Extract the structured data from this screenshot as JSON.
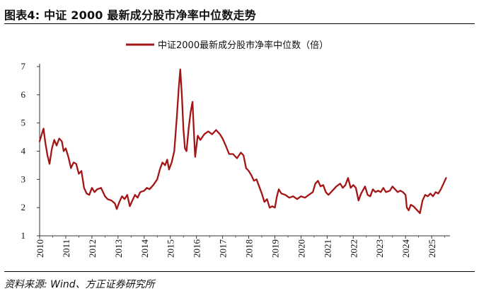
{
  "figure": {
    "title": "图表4: 中证 2000 最新成分股市净率中位数走势",
    "source": "资料来源: Wind、方正证券研究所"
  },
  "chart_data": {
    "type": "line",
    "title": "",
    "xlabel": "",
    "ylabel": "",
    "ylim": [
      1,
      7
    ],
    "yticks": [
      1,
      2,
      3,
      4,
      5,
      6,
      7
    ],
    "xlim": [
      2010,
      2025.7
    ],
    "xticks": [
      "2010",
      "2011",
      "2012",
      "2013",
      "2014",
      "2015",
      "2016",
      "2017",
      "2018",
      "2019",
      "2020",
      "2021",
      "2022",
      "2023",
      "2024",
      "2025"
    ],
    "grid": false,
    "legend_position": "top-center",
    "line_color": "#a31515",
    "series": [
      {
        "name": "中证2000最新成分股市净率中位数（倍）",
        "points": [
          [
            2010.0,
            4.35
          ],
          [
            2010.08,
            4.6
          ],
          [
            2010.15,
            4.8
          ],
          [
            2010.22,
            4.3
          ],
          [
            2010.3,
            3.85
          ],
          [
            2010.38,
            3.55
          ],
          [
            2010.47,
            4.1
          ],
          [
            2010.56,
            4.4
          ],
          [
            2010.65,
            4.2
          ],
          [
            2010.75,
            4.45
          ],
          [
            2010.85,
            4.35
          ],
          [
            2010.92,
            4.0
          ],
          [
            2011.0,
            4.1
          ],
          [
            2011.1,
            3.8
          ],
          [
            2011.2,
            3.4
          ],
          [
            2011.3,
            3.6
          ],
          [
            2011.4,
            3.55
          ],
          [
            2011.5,
            3.2
          ],
          [
            2011.6,
            3.3
          ],
          [
            2011.7,
            2.7
          ],
          [
            2011.8,
            2.5
          ],
          [
            2011.9,
            2.45
          ],
          [
            2012.0,
            2.7
          ],
          [
            2012.1,
            2.55
          ],
          [
            2012.2,
            2.65
          ],
          [
            2012.35,
            2.7
          ],
          [
            2012.5,
            2.4
          ],
          [
            2012.6,
            2.3
          ],
          [
            2012.75,
            2.25
          ],
          [
            2012.88,
            2.15
          ],
          [
            2012.95,
            1.95
          ],
          [
            2013.05,
            2.2
          ],
          [
            2013.15,
            2.4
          ],
          [
            2013.25,
            2.3
          ],
          [
            2013.35,
            2.45
          ],
          [
            2013.45,
            2.05
          ],
          [
            2013.55,
            2.25
          ],
          [
            2013.65,
            2.45
          ],
          [
            2013.75,
            2.35
          ],
          [
            2013.85,
            2.55
          ],
          [
            2014.0,
            2.6
          ],
          [
            2014.1,
            2.7
          ],
          [
            2014.2,
            2.65
          ],
          [
            2014.35,
            2.8
          ],
          [
            2014.5,
            3.0
          ],
          [
            2014.6,
            3.35
          ],
          [
            2014.7,
            3.6
          ],
          [
            2014.8,
            3.5
          ],
          [
            2014.88,
            3.7
          ],
          [
            2014.95,
            3.35
          ],
          [
            2015.05,
            3.6
          ],
          [
            2015.15,
            4.0
          ],
          [
            2015.25,
            5.2
          ],
          [
            2015.32,
            6.2
          ],
          [
            2015.38,
            6.9
          ],
          [
            2015.44,
            6.0
          ],
          [
            2015.5,
            4.8
          ],
          [
            2015.56,
            4.1
          ],
          [
            2015.62,
            4.0
          ],
          [
            2015.7,
            4.8
          ],
          [
            2015.78,
            5.4
          ],
          [
            2015.85,
            5.75
          ],
          [
            2015.9,
            4.7
          ],
          [
            2015.95,
            3.8
          ],
          [
            2016.05,
            4.55
          ],
          [
            2016.15,
            4.4
          ],
          [
            2016.3,
            4.6
          ],
          [
            2016.45,
            4.7
          ],
          [
            2016.6,
            4.6
          ],
          [
            2016.75,
            4.75
          ],
          [
            2016.9,
            4.6
          ],
          [
            2017.0,
            4.45
          ],
          [
            2017.12,
            4.2
          ],
          [
            2017.25,
            3.9
          ],
          [
            2017.4,
            3.9
          ],
          [
            2017.55,
            3.75
          ],
          [
            2017.7,
            3.95
          ],
          [
            2017.8,
            3.85
          ],
          [
            2017.9,
            3.4
          ],
          [
            2018.0,
            3.3
          ],
          [
            2018.1,
            3.15
          ],
          [
            2018.2,
            2.95
          ],
          [
            2018.3,
            3.0
          ],
          [
            2018.4,
            2.75
          ],
          [
            2018.5,
            2.5
          ],
          [
            2018.6,
            2.2
          ],
          [
            2018.7,
            2.3
          ],
          [
            2018.8,
            2.0
          ],
          [
            2018.9,
            2.05
          ],
          [
            2019.0,
            2.0
          ],
          [
            2019.08,
            2.4
          ],
          [
            2019.15,
            2.65
          ],
          [
            2019.25,
            2.5
          ],
          [
            2019.4,
            2.45
          ],
          [
            2019.55,
            2.35
          ],
          [
            2019.7,
            2.4
          ],
          [
            2019.85,
            2.3
          ],
          [
            2020.0,
            2.4
          ],
          [
            2020.15,
            2.35
          ],
          [
            2020.3,
            2.45
          ],
          [
            2020.45,
            2.55
          ],
          [
            2020.55,
            2.85
          ],
          [
            2020.65,
            2.95
          ],
          [
            2020.75,
            2.75
          ],
          [
            2020.85,
            2.8
          ],
          [
            2020.95,
            2.55
          ],
          [
            2021.05,
            2.45
          ],
          [
            2021.2,
            2.6
          ],
          [
            2021.35,
            2.75
          ],
          [
            2021.5,
            2.85
          ],
          [
            2021.6,
            2.7
          ],
          [
            2021.7,
            2.8
          ],
          [
            2021.8,
            3.05
          ],
          [
            2021.9,
            2.7
          ],
          [
            2022.0,
            2.8
          ],
          [
            2022.1,
            2.7
          ],
          [
            2022.2,
            2.25
          ],
          [
            2022.3,
            2.5
          ],
          [
            2022.45,
            2.75
          ],
          [
            2022.55,
            2.45
          ],
          [
            2022.65,
            2.4
          ],
          [
            2022.75,
            2.65
          ],
          [
            2022.85,
            2.55
          ],
          [
            2022.95,
            2.6
          ],
          [
            2023.05,
            2.55
          ],
          [
            2023.15,
            2.7
          ],
          [
            2023.25,
            2.55
          ],
          [
            2023.4,
            2.6
          ],
          [
            2023.5,
            2.75
          ],
          [
            2023.6,
            2.65
          ],
          [
            2023.7,
            2.55
          ],
          [
            2023.8,
            2.6
          ],
          [
            2023.9,
            2.55
          ],
          [
            2024.0,
            2.45
          ],
          [
            2024.05,
            2.0
          ],
          [
            2024.12,
            1.9
          ],
          [
            2024.2,
            2.1
          ],
          [
            2024.3,
            2.05
          ],
          [
            2024.4,
            1.95
          ],
          [
            2024.5,
            1.85
          ],
          [
            2024.55,
            1.8
          ],
          [
            2024.65,
            2.25
          ],
          [
            2024.75,
            2.45
          ],
          [
            2024.85,
            2.4
          ],
          [
            2024.95,
            2.5
          ],
          [
            2025.05,
            2.4
          ],
          [
            2025.15,
            2.55
          ],
          [
            2025.25,
            2.5
          ],
          [
            2025.35,
            2.65
          ],
          [
            2025.45,
            2.85
          ],
          [
            2025.55,
            3.05
          ]
        ]
      }
    ]
  }
}
